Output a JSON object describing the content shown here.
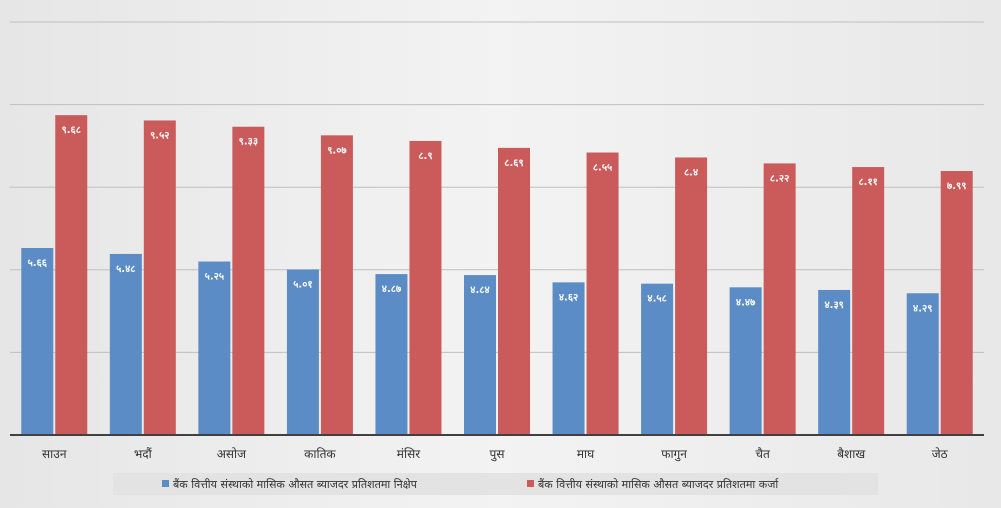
{
  "colors": {
    "deposit": "#5B8CC6",
    "loan": "#CB5B5B",
    "grid": "#bfbfbf",
    "axis": "#404040"
  },
  "chart_data": {
    "type": "bar",
    "categories": [
      "साउन",
      "भदौं",
      "असोज",
      "कातिक",
      "मंसिर",
      "पुस",
      "माघ",
      "फागुन",
      "चैत",
      "बैशाख",
      "जेठ"
    ],
    "series": [
      {
        "name": "बैंक वित्तीय संस्थाको मासिक औसत ब्याजदर प्रतिशतमा   निक्षेप",
        "values": [
          5.66,
          5.48,
          5.25,
          5.01,
          4.87,
          4.84,
          4.62,
          4.58,
          4.47,
          4.39,
          4.29
        ],
        "labels": [
          "५.६६",
          "५.४८",
          "५.२५",
          "५.०१",
          "४.८७",
          "४.८४",
          "४.६२",
          "४.५८",
          "४.४७",
          "४.३९",
          "४.२९"
        ]
      },
      {
        "name": "बैंक वित्तीय संस्थाको मासिक औसत ब्याजदर प्रतिशतमा कर्जा",
        "values": [
          9.68,
          9.52,
          9.33,
          9.07,
          8.9,
          8.69,
          8.55,
          8.4,
          8.22,
          8.11,
          7.99
        ],
        "labels": [
          "९.६८",
          "९.५२",
          "९.३३",
          "९.०७",
          "८.९",
          "८.६९",
          "८.५५",
          "८.४",
          "८.२२",
          "८.११",
          "७.९९"
        ]
      }
    ],
    "ylim": [
      0,
      12.5
    ],
    "grid": true,
    "legend_position": "bottom"
  }
}
